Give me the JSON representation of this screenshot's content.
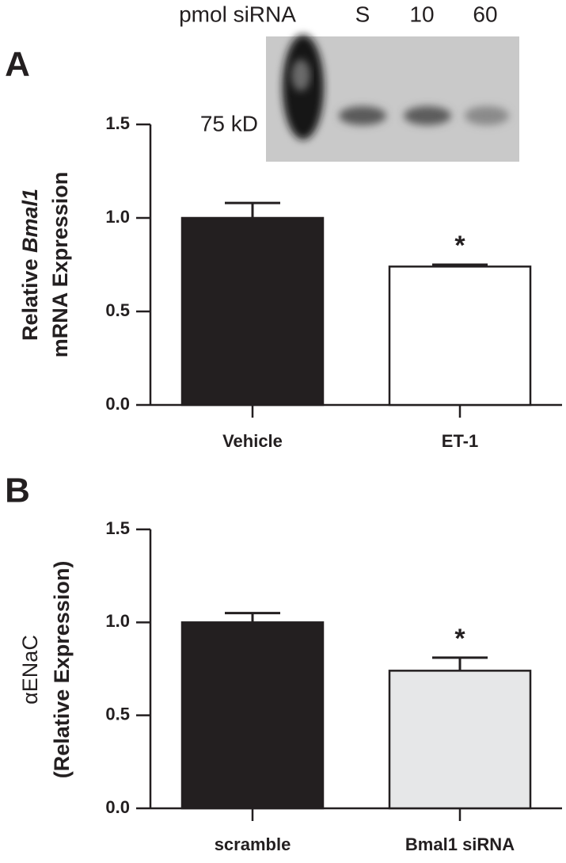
{
  "blot": {
    "title": "pmol siRNA",
    "lanes": [
      "S",
      "10",
      "60"
    ],
    "marker": "75 kD"
  },
  "chart_data": [
    {
      "type": "bar",
      "panel": "A",
      "ylabel_lines": [
        [
          "Relative ",
          "Bmal1"
        ],
        [
          "mRNA Expression"
        ]
      ],
      "categories": [
        "Vehicle",
        "ET-1"
      ],
      "values": [
        1.0,
        0.74
      ],
      "errors": [
        0.08,
        0.01
      ],
      "colors": [
        "#231f20",
        "#ffffff"
      ],
      "annotation": "*",
      "ylim": [
        0,
        1.5
      ],
      "yticks": [
        {
          "value": 0,
          "label": "0.0"
        },
        0.5,
        {
          "value": 1,
          "label": "1.0"
        },
        1.5
      ]
    },
    {
      "type": "bar",
      "panel": "B",
      "ylabel_lines": [
        "αENaC",
        "(Relative Expression)"
      ],
      "categories": [
        "scramble",
        "Bmal1 siRNA"
      ],
      "values": [
        1.0,
        0.74
      ],
      "errors": [
        0.05,
        0.07
      ],
      "colors": [
        "#231f20",
        "#e6e7e8"
      ],
      "annotation": "*",
      "ylim": [
        0,
        1.5
      ],
      "yticks": [
        {
          "value": 0,
          "label": "0.0"
        },
        0.5,
        {
          "value": 1,
          "label": "1.0"
        },
        1.5
      ]
    }
  ]
}
